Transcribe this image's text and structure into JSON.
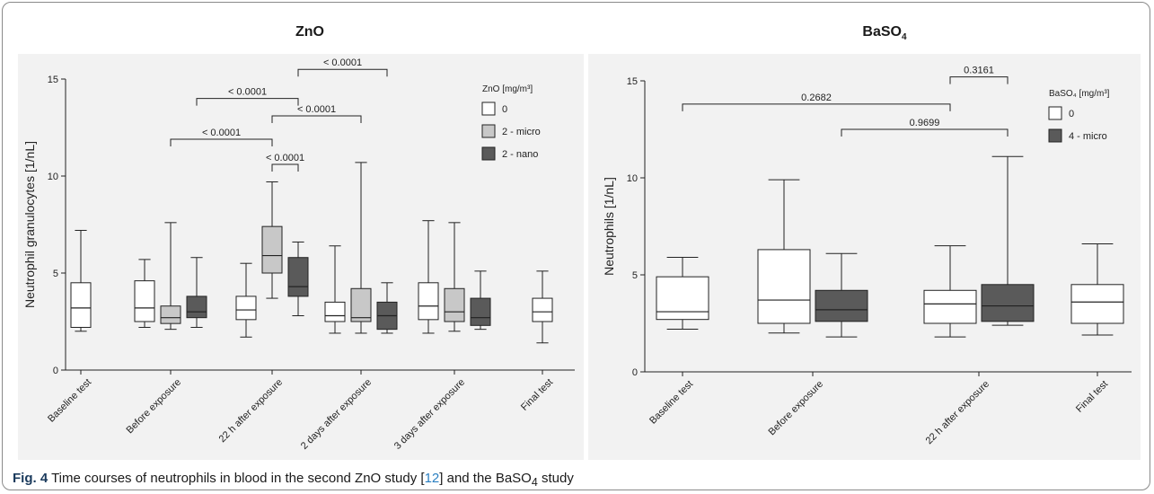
{
  "caption": {
    "label": "Fig. 4",
    "text_before": "Time courses of neutrophils in blood in the second ZnO study  [",
    "ref": "12",
    "text_mid": "] and the BaSO",
    "sub": "4",
    "text_after": " study"
  },
  "chart_data": [
    {
      "type": "box",
      "title": "ZnO",
      "ylabel": "Neutrophil granulocytes [1/nL]",
      "ylim": [
        0,
        15
      ],
      "yticks": [
        0,
        5,
        10,
        15
      ],
      "categories": [
        "Baseline test",
        "Before exposure",
        "22 h after exposure",
        "2 days after exposure",
        "3 days after exposure",
        "Final test"
      ],
      "legend": {
        "title": "ZnO [mg/m³]",
        "entries": [
          {
            "label": "0",
            "color": "#ffffff"
          },
          {
            "label": "2 - micro",
            "color": "#c8c8c8"
          },
          {
            "label": "2 - nano",
            "color": "#5a5a5a"
          }
        ]
      },
      "series": [
        {
          "name": "0",
          "color": "#ffffff",
          "boxes": [
            {
              "category": 0,
              "min": 2.0,
              "q1": 2.2,
              "median": 3.2,
              "q3": 4.5,
              "max": 7.2
            },
            {
              "category": 1,
              "min": 2.2,
              "q1": 2.5,
              "median": 3.2,
              "q3": 4.6,
              "max": 5.7
            },
            {
              "category": 2,
              "min": 1.7,
              "q1": 2.6,
              "median": 3.1,
              "q3": 3.8,
              "max": 5.5
            },
            {
              "category": 3,
              "min": 1.9,
              "q1": 2.5,
              "median": 2.8,
              "q3": 3.5,
              "max": 6.4
            },
            {
              "category": 4,
              "min": 1.9,
              "q1": 2.6,
              "median": 3.3,
              "q3": 4.5,
              "max": 7.7
            },
            {
              "category": 5,
              "min": 1.4,
              "q1": 2.5,
              "median": 3.0,
              "q3": 3.7,
              "max": 5.1
            }
          ]
        },
        {
          "name": "2 - micro",
          "color": "#c8c8c8",
          "boxes": [
            {
              "category": 1,
              "min": 2.1,
              "q1": 2.4,
              "median": 2.7,
              "q3": 3.3,
              "max": 7.6
            },
            {
              "category": 2,
              "min": 3.7,
              "q1": 5.0,
              "median": 5.9,
              "q3": 7.4,
              "max": 9.7
            },
            {
              "category": 3,
              "min": 1.9,
              "q1": 2.5,
              "median": 2.7,
              "q3": 4.2,
              "max": 10.7
            },
            {
              "category": 4,
              "min": 2.0,
              "q1": 2.5,
              "median": 3.0,
              "q3": 4.2,
              "max": 7.6
            }
          ]
        },
        {
          "name": "2 - nano",
          "color": "#5a5a5a",
          "boxes": [
            {
              "category": 1,
              "min": 2.2,
              "q1": 2.7,
              "median": 3.0,
              "q3": 3.8,
              "max": 5.8
            },
            {
              "category": 2,
              "min": 2.8,
              "q1": 3.8,
              "median": 4.3,
              "q3": 5.8,
              "max": 6.6
            },
            {
              "category": 3,
              "min": 1.9,
              "q1": 2.1,
              "median": 2.8,
              "q3": 3.5,
              "max": 4.5
            },
            {
              "category": 4,
              "min": 2.1,
              "q1": 2.3,
              "median": 2.7,
              "q3": 3.7,
              "max": 5.1
            }
          ]
        }
      ],
      "annotations": [
        {
          "label": "< 0.0001",
          "from": {
            "category": 2,
            "series": 1
          },
          "to": {
            "category": 2,
            "series": 2
          },
          "y": 10.6
        },
        {
          "label": "< 0.0001",
          "from": {
            "category": 1,
            "series": 1
          },
          "to": {
            "category": 2,
            "series": 1
          },
          "y": 11.9
        },
        {
          "label": "< 0.0001",
          "from": {
            "category": 2,
            "series": 1
          },
          "to": {
            "category": 3,
            "series": 1
          },
          "y": 13.1
        },
        {
          "label": "< 0.0001",
          "from": {
            "category": 1,
            "series": 2
          },
          "to": {
            "category": 2,
            "series": 2
          },
          "y": 14.0
        },
        {
          "label": "< 0.0001",
          "from": {
            "category": 2,
            "series": 2
          },
          "to": {
            "category": 3,
            "series": 2
          },
          "y": 15.5
        }
      ]
    },
    {
      "type": "box",
      "title": "BaSO",
      "title_sub": "4",
      "ylabel": "Neutrophils [1/nL]",
      "ylim": [
        0,
        15
      ],
      "yticks": [
        0,
        5,
        10,
        15
      ],
      "categories": [
        "Baseline test",
        "Before exposure",
        "22 h after exposure",
        "Final test"
      ],
      "legend": {
        "title": "BaSO₄ [mg/m³]",
        "entries": [
          {
            "label": "0",
            "color": "#ffffff"
          },
          {
            "label": "4 - micro",
            "color": "#5a5a5a"
          }
        ]
      },
      "series": [
        {
          "name": "0",
          "color": "#ffffff",
          "boxes": [
            {
              "category": 0,
              "min": 2.2,
              "q1": 2.7,
              "median": 3.1,
              "q3": 4.9,
              "max": 5.9
            },
            {
              "category": 1,
              "min": 2.0,
              "q1": 2.5,
              "median": 3.7,
              "q3": 6.3,
              "max": 9.9
            },
            {
              "category": 2,
              "min": 1.8,
              "q1": 2.5,
              "median": 3.5,
              "q3": 4.2,
              "max": 6.5
            },
            {
              "category": 3,
              "min": 1.9,
              "q1": 2.5,
              "median": 3.6,
              "q3": 4.5,
              "max": 6.6
            }
          ]
        },
        {
          "name": "4 - micro",
          "color": "#5a5a5a",
          "boxes": [
            {
              "category": 1,
              "min": 1.8,
              "q1": 2.6,
              "median": 3.2,
              "q3": 4.2,
              "max": 6.1
            },
            {
              "category": 2,
              "min": 2.4,
              "q1": 2.6,
              "median": 3.4,
              "q3": 4.5,
              "max": 11.1
            }
          ]
        }
      ],
      "annotations": [
        {
          "label": "0.2682",
          "from": {
            "category": 0,
            "series": 0
          },
          "to": {
            "category": 2,
            "series": 0
          },
          "y": 13.8
        },
        {
          "label": "0.9699",
          "from": {
            "category": 1,
            "series": 1
          },
          "to": {
            "category": 2,
            "series": 1
          },
          "y": 12.5
        },
        {
          "label": "0.3161",
          "from": {
            "category": 2,
            "series": 0
          },
          "to": {
            "category": 2,
            "series": 1
          },
          "y": 15.2
        }
      ]
    }
  ]
}
